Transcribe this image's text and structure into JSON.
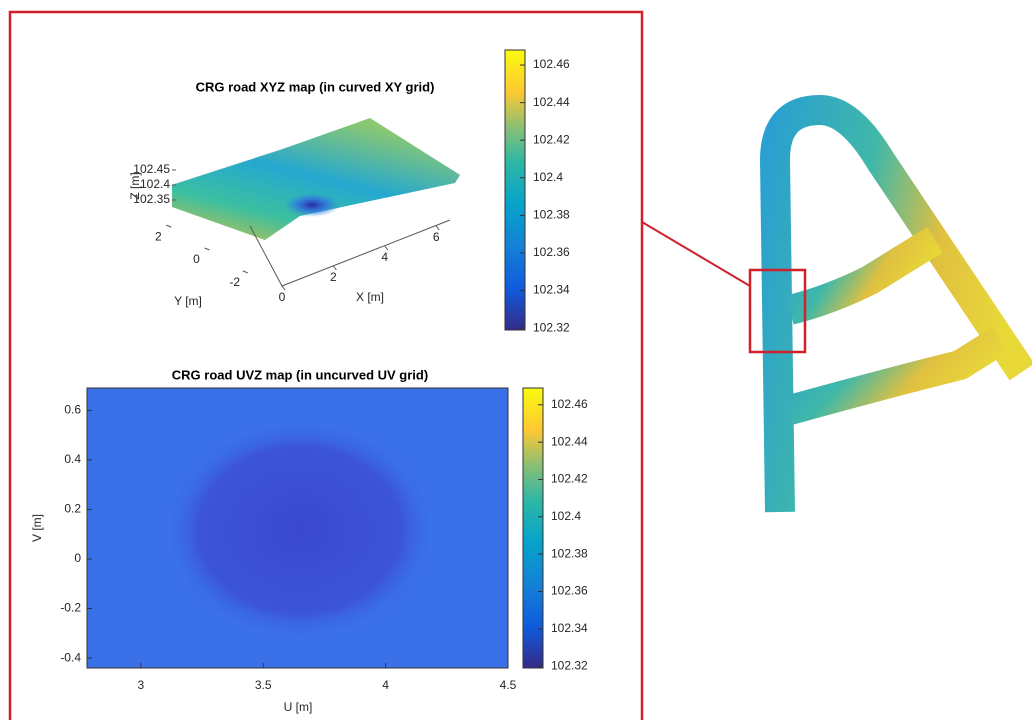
{
  "chart_data": [
    {
      "type": "surface",
      "title": "CRG road XYZ map (in curved XY grid)",
      "xlabel": "X [m]",
      "ylabel": "Y [m]",
      "zlabel": "Z [m]",
      "xlim": [
        0,
        7.2
      ],
      "ylim": [
        -2.8,
        2.8
      ],
      "zlim": [
        102.33,
        102.47
      ],
      "xticks": [
        0,
        2,
        4,
        6
      ],
      "yticks": [
        -2,
        0,
        2
      ],
      "zticks": [
        102.35,
        102.4,
        102.45
      ],
      "clim": [
        102.319,
        102.468
      ],
      "cticks": [
        102.32,
        102.34,
        102.36,
        102.38,
        102.4,
        102.42,
        102.44,
        102.46
      ]
    },
    {
      "type": "heatmap",
      "title": "CRG road UVZ map (in uncurved UV grid)",
      "xlabel": "U [m]",
      "ylabel": "V [m]",
      "xlim": [
        2.78,
        4.5
      ],
      "ylim": [
        -0.44,
        0.69
      ],
      "xticks": [
        3,
        3.5,
        4,
        4.5
      ],
      "yticks": [
        -0.4,
        -0.2,
        0,
        0.2,
        0.4,
        0.6
      ],
      "clim": [
        102.319,
        102.469
      ],
      "cticks": [
        102.32,
        102.34,
        102.36,
        102.38,
        102.4,
        102.42,
        102.44,
        102.46
      ]
    }
  ]
}
